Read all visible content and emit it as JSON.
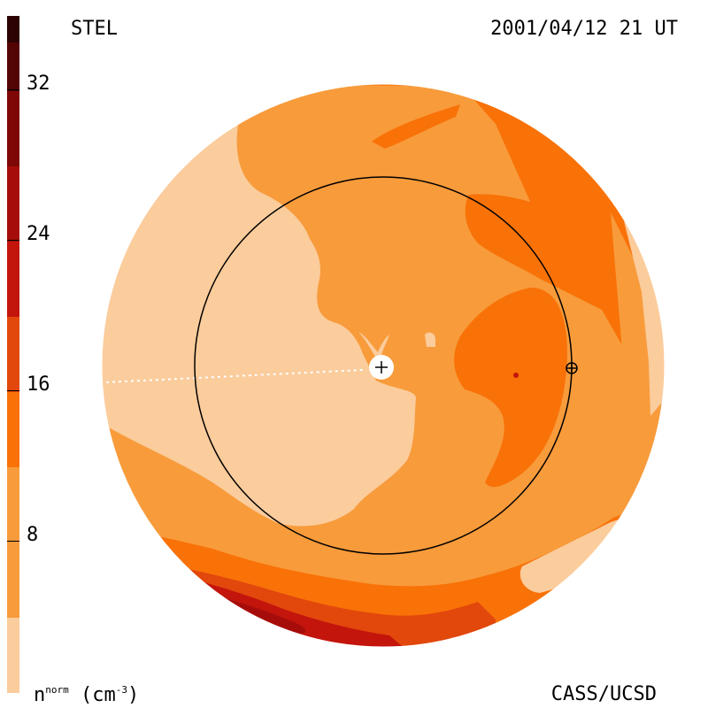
{
  "header": {
    "source": "STEL",
    "timestamp": "2001/04/12 21 UT"
  },
  "footer": {
    "unit_base": "n",
    "unit_sup": "norm",
    "unit_rest": " (cm",
    "unit_exp": "-3",
    "unit_close": ")",
    "credit": "CASS/UCSD"
  },
  "colorbar": {
    "ticks": [
      "32",
      "24",
      "16",
      "8"
    ],
    "colors": [
      "#fbcc9c",
      "#f89b3b",
      "#f87208",
      "#e2470c",
      "#c3150c",
      "#a60d0a",
      "#7e0806",
      "#520503",
      "#2c0302"
    ]
  },
  "map": {
    "colors": {
      "light": "#fbcc9c",
      "mid": "#f89b3b",
      "dark": "#f87208",
      "deep": "#e2470c",
      "red": "#c3150c",
      "darkred": "#a60d0a"
    },
    "center_symbol": "+",
    "body_symbol": "⊕"
  }
}
